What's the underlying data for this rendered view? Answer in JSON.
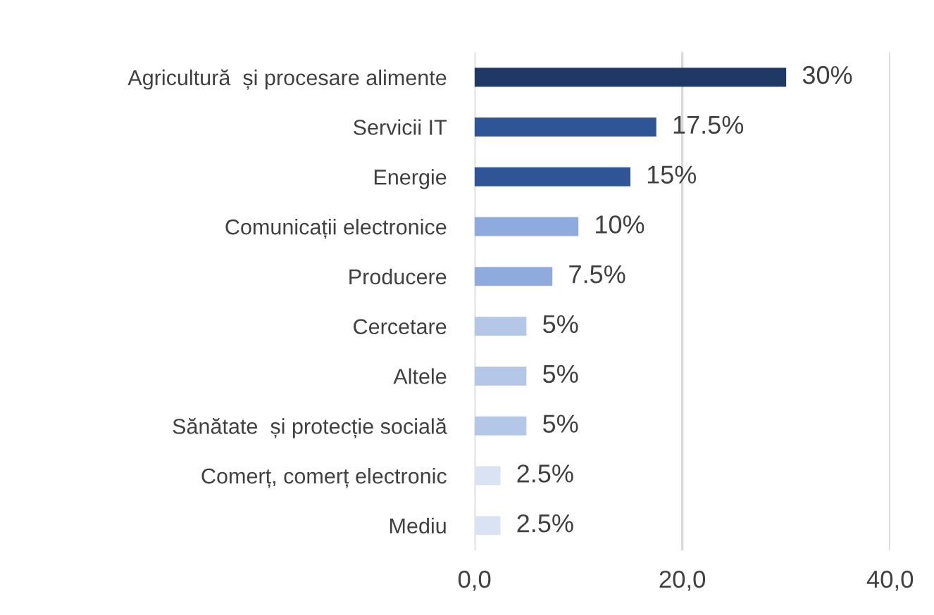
{
  "chart_data": {
    "type": "bar",
    "orientation": "horizontal",
    "categories": [
      "Agricultură  și procesare alimente",
      "Servicii IT",
      "Energie",
      "Comunicații electronice",
      "Producere",
      "Cercetare",
      "Altele",
      "Sănătate  și protecție socială",
      "Comerț, comerț electronic",
      "Mediu"
    ],
    "values": [
      30,
      17.5,
      15,
      10,
      7.5,
      5,
      5,
      5,
      2.5,
      2.5
    ],
    "colors": [
      "#1f3864",
      "#2f5597",
      "#2f5597",
      "#8faadc",
      "#8faadc",
      "#b4c7e7",
      "#b4c7e7",
      "#b4c7e7",
      "#dae3f3",
      "#dae3f3"
    ],
    "value_labels": [
      "30%",
      "17.5%",
      "15%",
      "10%",
      "7.5%",
      "5%",
      "5%",
      "5%",
      "2.5%",
      "2.5%"
    ],
    "xlim": [
      0,
      40
    ],
    "xticks": [
      {
        "value": 0,
        "label": "0,0"
      },
      {
        "value": 20,
        "label": "20,0"
      },
      {
        "value": 40,
        "label": "40,0"
      }
    ],
    "grid": "x"
  }
}
